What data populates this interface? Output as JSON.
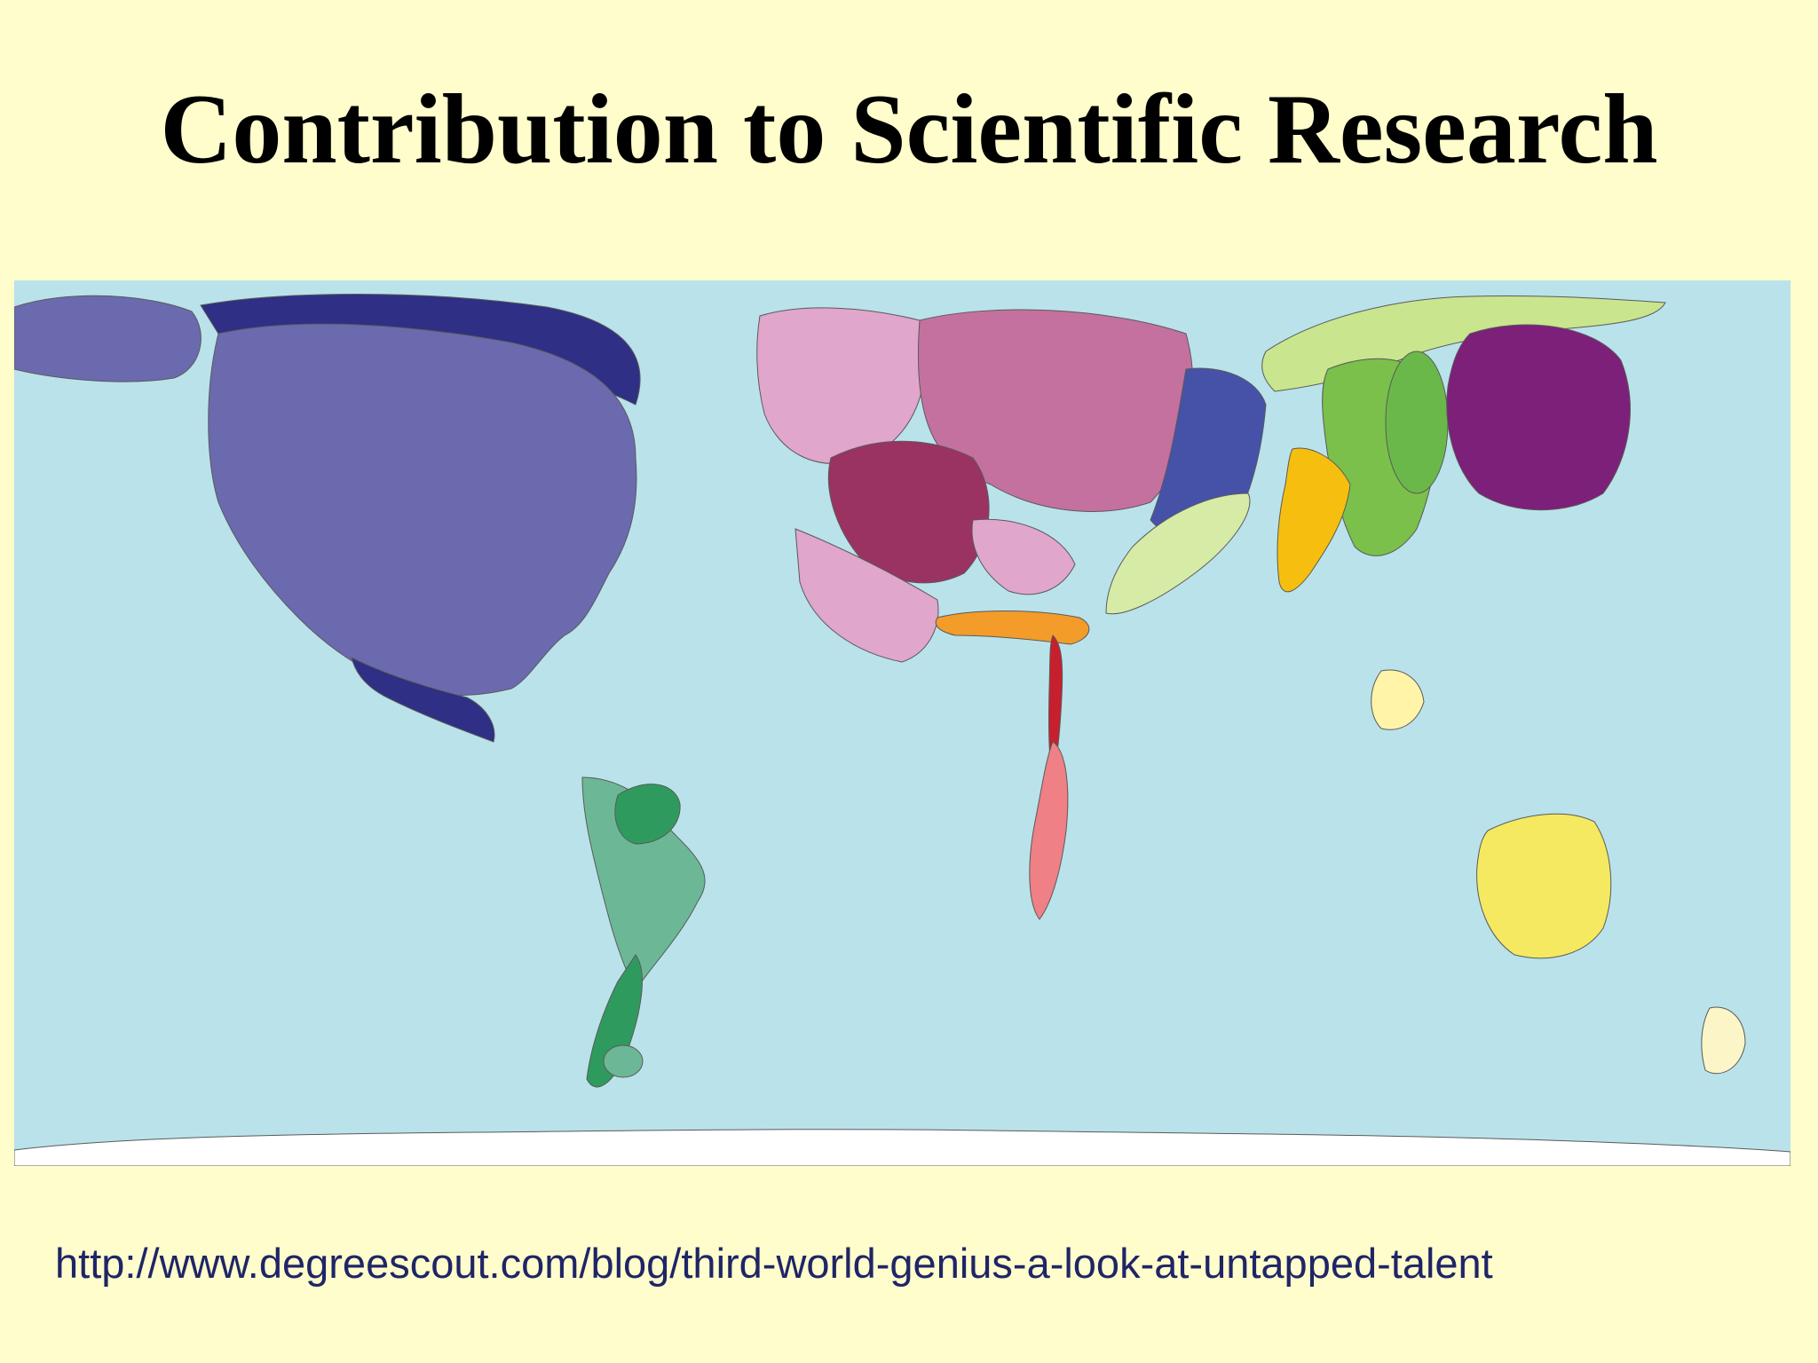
{
  "slide": {
    "title": "Contribution to Scientific Research",
    "source_url": "http://www.degreescout.com/blog/third-world-genius-a-look-at-untapped-talent"
  },
  "colors": {
    "background": "#fefdcb",
    "ocean": "#bae2ea",
    "north_america": "#6b6aaf",
    "north_america_dark": "#2e2f85",
    "south_america": "#6cb896",
    "south_america_dark": "#2f9a5e",
    "europe_light": "#e0a6cc",
    "europe_mid": "#c4719f",
    "europe_dark": "#9a3362",
    "eastern_europe": "#4552a8",
    "middle_east": "#d6eba6",
    "russia_central_asia": "#c9e58e",
    "china": "#7ac04a",
    "korea": "#6bb84a",
    "japan": "#7d2079",
    "india": "#f6bf10",
    "southeast_asia": "#fff4a8",
    "africa_orange": "#f39c2a",
    "africa_south": "#ef8086",
    "africa_red": "#c6202e",
    "oceania": "#f4e961",
    "new_zealand": "#fbf5c7",
    "antarctica": "#ffffff"
  }
}
